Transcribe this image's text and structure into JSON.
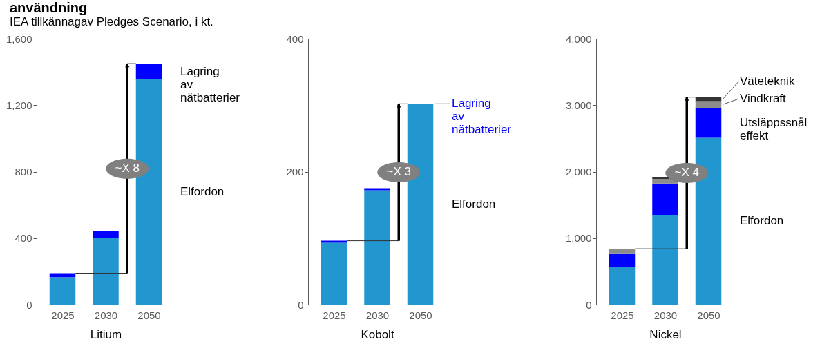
{
  "chart_data": [
    {
      "type": "bar",
      "title": "användning",
      "subtitle": "IEA tillkännagav Pledges Scenario, i kt.",
      "xlabel": "Litium",
      "categories": [
        "2025",
        "2030",
        "2050"
      ],
      "stacked": true,
      "ylim": [
        0,
        1600
      ],
      "yticks": [
        0,
        400,
        800,
        {
          "value": 1200,
          "label": "1,200"
        },
        {
          "value": 1600,
          "label": "1,600"
        }
      ],
      "annotations": [
        "~X 8"
      ],
      "series": [
        {
          "name": "Elfordon",
          "color": "#2196cf",
          "values": [
            165,
            400,
            1355
          ]
        },
        {
          "name": "Lagring av nätbatterier",
          "color": "#0000ff",
          "values": [
            20,
            45,
            95
          ]
        }
      ]
    },
    {
      "type": "bar",
      "xlabel": "Kobolt",
      "categories": [
        "2025",
        "2030",
        "2050"
      ],
      "stacked": true,
      "ylim": [
        0,
        400
      ],
      "yticks": [
        0,
        200,
        400
      ],
      "annotations": [
        "~X 3"
      ],
      "series": [
        {
          "name": "Elfordon",
          "color": "#2196cf",
          "values": [
            93,
            172,
            302
          ]
        },
        {
          "name": "Lagring av nätbatterier",
          "color": "#0000ff",
          "values": [
            3,
            3,
            0
          ]
        }
      ]
    },
    {
      "type": "bar",
      "xlabel": "Nickel",
      "categories": [
        "2025",
        "2030",
        "2050"
      ],
      "stacked": true,
      "ylim": [
        0,
        4000
      ],
      "yticks": [
        0,
        {
          "value": 1000,
          "label": "1,000"
        },
        {
          "value": 2000,
          "label": "2,000"
        },
        {
          "value": 3000,
          "label": "3,000"
        },
        {
          "value": 4000,
          "label": "4,000"
        }
      ],
      "annotations": [
        "~X 4"
      ],
      "series": [
        {
          "name": "Elfordon",
          "color": "#2196cf",
          "values": [
            570,
            1350,
            2510
          ]
        },
        {
          "name": "Utsläppssnål effekt",
          "color": "#0000ff",
          "values": [
            190,
            470,
            450
          ]
        },
        {
          "name": "Vindkraft",
          "color": "#8c8c8c",
          "values": [
            80,
            70,
            100
          ]
        },
        {
          "name": "Väteteknik",
          "color": "#333333",
          "values": [
            0,
            30,
            60
          ]
        }
      ]
    }
  ]
}
